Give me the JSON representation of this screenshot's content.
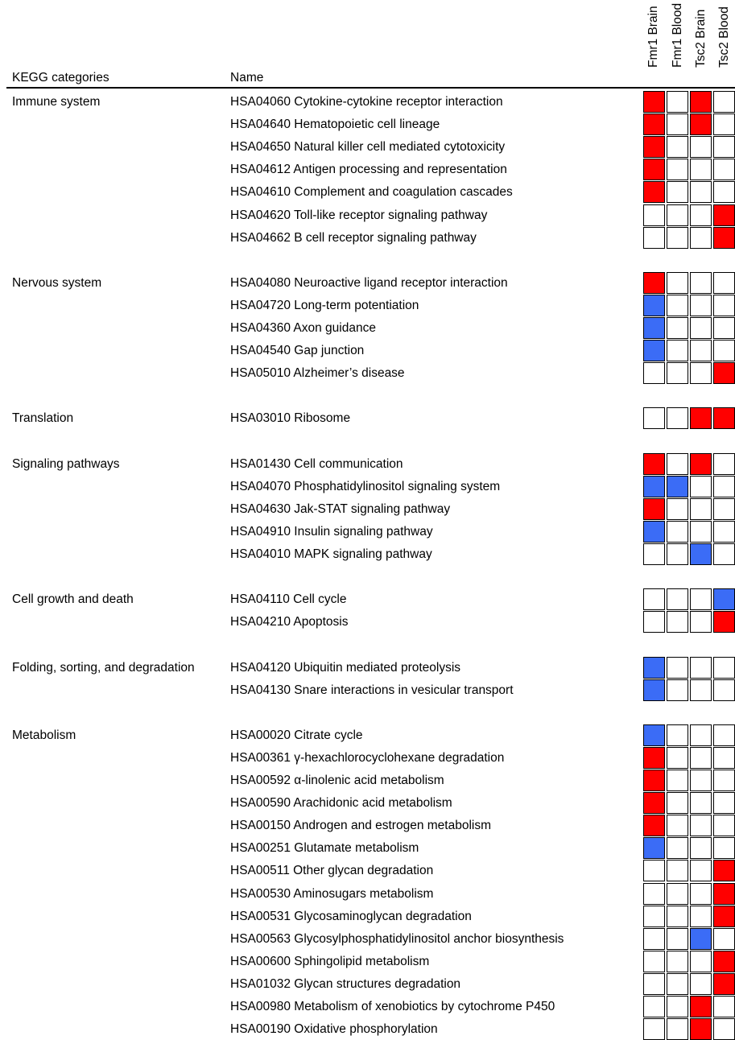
{
  "header": {
    "categories_label": "KEGG categories",
    "name_label": "Name"
  },
  "chart_data": {
    "type": "heatmap",
    "columns": [
      "Fmr1 Brain",
      "Fmr1 Blood",
      "Tsc2 Brain",
      "Tsc2 Blood"
    ],
    "legend_colors": {
      "up": "#ff0000",
      "down": "#3b6cf6",
      "none": "#ffffff"
    },
    "groups": [
      {
        "category": "Immune system",
        "pathways": [
          {
            "name": "HSA04060 Cytokine-cytokine receptor interaction",
            "cells": [
              "up",
              "none",
              "up",
              "none"
            ]
          },
          {
            "name": "HSA04640 Hematopoietic cell lineage",
            "cells": [
              "up",
              "none",
              "up",
              "none"
            ]
          },
          {
            "name": "HSA04650 Natural killer cell mediated cytotoxicity",
            "cells": [
              "up",
              "none",
              "none",
              "none"
            ]
          },
          {
            "name": "HSA04612 Antigen processing and representation",
            "cells": [
              "up",
              "none",
              "none",
              "none"
            ]
          },
          {
            "name": "HSA04610 Complement and coagulation cascades",
            "cells": [
              "up",
              "none",
              "none",
              "none"
            ]
          },
          {
            "name": "HSA04620 Toll-like receptor signaling pathway",
            "cells": [
              "none",
              "none",
              "none",
              "up"
            ]
          },
          {
            "name": "HSA04662 B cell receptor signaling pathway",
            "cells": [
              "none",
              "none",
              "none",
              "up"
            ]
          }
        ]
      },
      {
        "category": "Nervous system",
        "pathways": [
          {
            "name": "HSA04080 Neuroactive ligand receptor interaction",
            "cells": [
              "up",
              "none",
              "none",
              "none"
            ]
          },
          {
            "name": "HSA04720 Long-term potentiation",
            "cells": [
              "down",
              "none",
              "none",
              "none"
            ]
          },
          {
            "name": "HSA04360 Axon guidance",
            "cells": [
              "down",
              "none",
              "none",
              "none"
            ]
          },
          {
            "name": "HSA04540 Gap junction",
            "cells": [
              "down",
              "none",
              "none",
              "none"
            ]
          },
          {
            "name": "HSA05010 Alzheimer’s disease",
            "cells": [
              "none",
              "none",
              "none",
              "up"
            ]
          }
        ]
      },
      {
        "category": "Translation",
        "pathways": [
          {
            "name": "HSA03010 Ribosome",
            "cells": [
              "none",
              "none",
              "up",
              "up"
            ]
          }
        ]
      },
      {
        "category": "Signaling pathways",
        "pathways": [
          {
            "name": "HSA01430 Cell communication",
            "cells": [
              "up",
              "none",
              "up",
              "none"
            ]
          },
          {
            "name": "HSA04070 Phosphatidylinositol signaling system",
            "cells": [
              "down",
              "down",
              "none",
              "none"
            ]
          },
          {
            "name": "HSA04630 Jak-STAT signaling pathway",
            "cells": [
              "up",
              "none",
              "none",
              "none"
            ]
          },
          {
            "name": "HSA04910 Insulin signaling pathway",
            "cells": [
              "down",
              "none",
              "none",
              "none"
            ]
          },
          {
            "name": "HSA04010 MAPK signaling pathway",
            "cells": [
              "none",
              "none",
              "down",
              "none"
            ]
          }
        ]
      },
      {
        "category": "Cell growth and death",
        "pathways": [
          {
            "name": "HSA04110 Cell cycle",
            "cells": [
              "none",
              "none",
              "none",
              "down"
            ]
          },
          {
            "name": "HSA04210 Apoptosis",
            "cells": [
              "none",
              "none",
              "none",
              "up"
            ]
          }
        ]
      },
      {
        "category": "Folding, sorting, and degradation",
        "pathways": [
          {
            "name": "HSA04120 Ubiquitin mediated proteolysis",
            "cells": [
              "down",
              "none",
              "none",
              "none"
            ]
          },
          {
            "name": "HSA04130 Snare interactions in vesicular transport",
            "cells": [
              "down",
              "none",
              "none",
              "none"
            ]
          }
        ]
      },
      {
        "category": "Metabolism",
        "pathways": [
          {
            "name": "HSA00020 Citrate cycle",
            "cells": [
              "down",
              "none",
              "none",
              "none"
            ]
          },
          {
            "name": "HSA00361 γ-hexachlorocyclohexane degradation",
            "cells": [
              "up",
              "none",
              "none",
              "none"
            ]
          },
          {
            "name": "HSA00592 α-linolenic acid metabolism",
            "cells": [
              "up",
              "none",
              "none",
              "none"
            ]
          },
          {
            "name": "HSA00590 Arachidonic acid metabolism",
            "cells": [
              "up",
              "none",
              "none",
              "none"
            ]
          },
          {
            "name": "HSA00150 Androgen and estrogen metabolism",
            "cells": [
              "up",
              "none",
              "none",
              "none"
            ]
          },
          {
            "name": "HSA00251 Glutamate metabolism",
            "cells": [
              "down",
              "none",
              "none",
              "none"
            ]
          },
          {
            "name": "HSA00511 Other glycan degradation",
            "cells": [
              "none",
              "none",
              "none",
              "up"
            ]
          },
          {
            "name": "HSA00530 Aminosugars metabolism",
            "cells": [
              "none",
              "none",
              "none",
              "up"
            ]
          },
          {
            "name": "HSA00531 Glycosaminoglycan degradation",
            "cells": [
              "none",
              "none",
              "none",
              "up"
            ]
          },
          {
            "name": "HSA00563 Glycosylphosphatidylinositol anchor biosynthesis",
            "cells": [
              "none",
              "none",
              "down",
              "none"
            ]
          },
          {
            "name": "HSA00600 Sphingolipid metabolism",
            "cells": [
              "none",
              "none",
              "none",
              "up"
            ]
          },
          {
            "name": "HSA01032 Glycan structures degradation",
            "cells": [
              "none",
              "none",
              "none",
              "up"
            ]
          },
          {
            "name": "HSA00980 Metabolism of xenobiotics by cytochrome P450",
            "cells": [
              "none",
              "none",
              "up",
              "none"
            ]
          },
          {
            "name": "HSA00190 Oxidative phosphorylation",
            "cells": [
              "none",
              "none",
              "up",
              "none"
            ]
          }
        ]
      }
    ]
  }
}
